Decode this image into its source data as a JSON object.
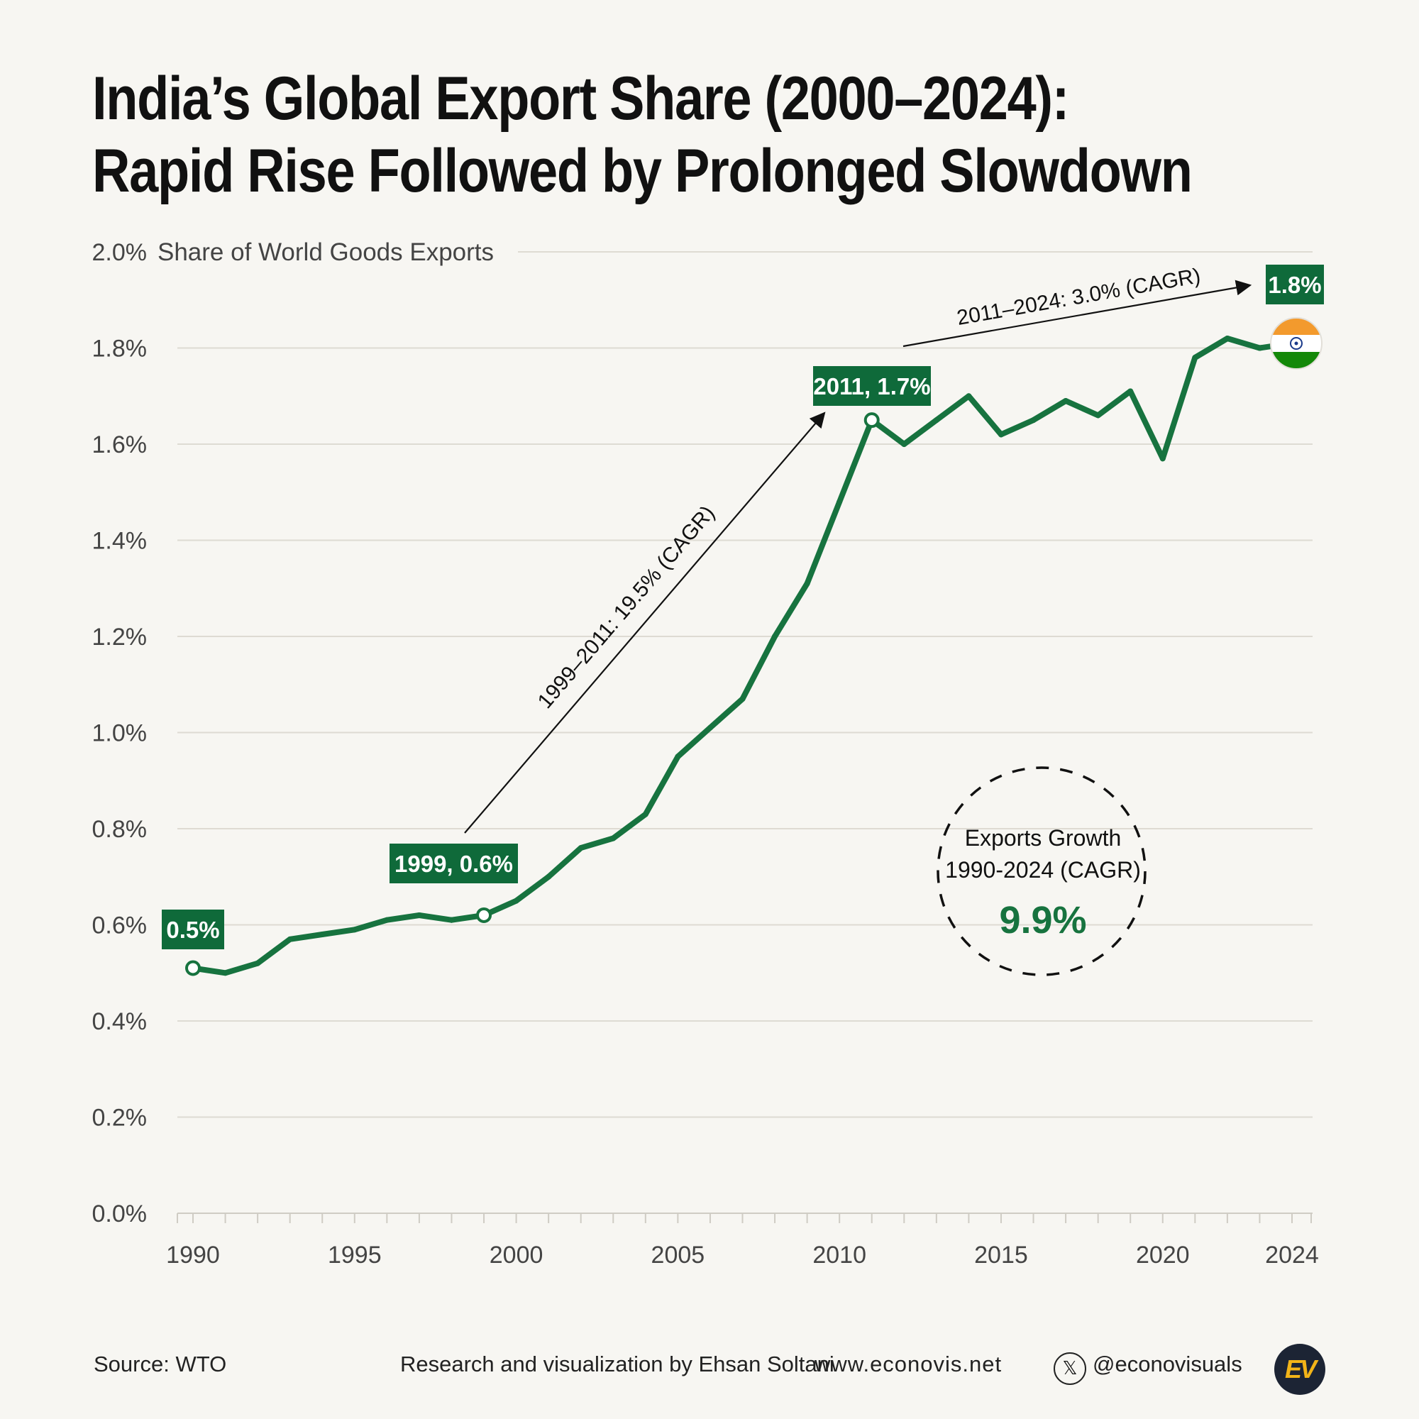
{
  "title": {
    "line1": "India’s Global Export Share (2000–2024):",
    "line2": "Rapid Rise Followed by Prolonged Slowdown"
  },
  "chart_data": {
    "type": "line",
    "ylabel": "Share of World Goods Exports",
    "ylim": [
      0,
      2.0
    ],
    "yticks": [
      {
        "value": 0.0,
        "label": "0.0%"
      },
      {
        "value": 0.2,
        "label": "0.2%"
      },
      {
        "value": 0.4,
        "label": "0.4%"
      },
      {
        "value": 0.6,
        "label": "0.6%"
      },
      {
        "value": 0.8,
        "label": "0.8%"
      },
      {
        "value": 1.0,
        "label": "1.0%"
      },
      {
        "value": 1.2,
        "label": "1.2%"
      },
      {
        "value": 1.4,
        "label": "1.4%"
      },
      {
        "value": 1.6,
        "label": "1.6%"
      },
      {
        "value": 1.8,
        "label": "1.8%"
      },
      {
        "value": 2.0,
        "label": "2.0%"
      }
    ],
    "xlim": [
      1990,
      2024
    ],
    "xtick_labels": [
      {
        "value": 1990,
        "label": "1990"
      },
      {
        "value": 1995,
        "label": "1995"
      },
      {
        "value": 2000,
        "label": "2000"
      },
      {
        "value": 2005,
        "label": "2005"
      },
      {
        "value": 2010,
        "label": "2010"
      },
      {
        "value": 2015,
        "label": "2015"
      },
      {
        "value": 2020,
        "label": "2020"
      },
      {
        "value": 2024,
        "label": "2024"
      }
    ],
    "series": [
      {
        "name": "India share of world goods exports (%)",
        "color": "#17733f",
        "x": [
          1990,
          1991,
          1992,
          1993,
          1994,
          1995,
          1996,
          1997,
          1998,
          1999,
          2000,
          2001,
          2002,
          2003,
          2004,
          2005,
          2006,
          2007,
          2008,
          2009,
          2010,
          2011,
          2012,
          2013,
          2014,
          2015,
          2016,
          2017,
          2018,
          2019,
          2020,
          2021,
          2022,
          2023,
          2024
        ],
        "values": [
          0.51,
          0.5,
          0.52,
          0.57,
          0.58,
          0.59,
          0.61,
          0.62,
          0.61,
          0.62,
          0.65,
          0.7,
          0.76,
          0.78,
          0.83,
          0.95,
          1.01,
          1.07,
          1.2,
          1.31,
          1.48,
          1.65,
          1.6,
          1.65,
          1.7,
          1.62,
          1.65,
          1.69,
          1.66,
          1.71,
          1.57,
          1.78,
          1.82,
          1.8,
          1.81
        ]
      }
    ],
    "callouts": [
      {
        "label": "0.5%",
        "year": 1990,
        "value": 0.51
      },
      {
        "label": "1999, 0.6%",
        "year": 1999,
        "value": 0.62
      },
      {
        "label": "2011, 1.7%",
        "year": 2011,
        "value": 1.65
      },
      {
        "label": "1.8%",
        "year": 2024,
        "value": 1.81
      }
    ],
    "annotations": [
      {
        "text": "1999–2011: 19.5% (CAGR)"
      },
      {
        "text": "2011–2024: 3.0% (CAGR)"
      }
    ],
    "summary": {
      "line1": "Exports Growth",
      "line2": "1990-2024 (CAGR)",
      "value": "9.9%"
    }
  },
  "colors": {
    "line": "#17733f",
    "label_bg": "#0f6a3a",
    "grid": "#dedbd3",
    "background": "#f7f6f2",
    "flag_saffron": "#f39a2d",
    "flag_green": "#138808",
    "flag_chakra": "#1a3a8a"
  },
  "footer": {
    "source": "Source: WTO",
    "credit": "Research and visualization by Ehsan Soltani",
    "site": "www.econovis.net",
    "x_icon": "𝕏",
    "handle": "@econovisuals",
    "logo": "EV"
  }
}
